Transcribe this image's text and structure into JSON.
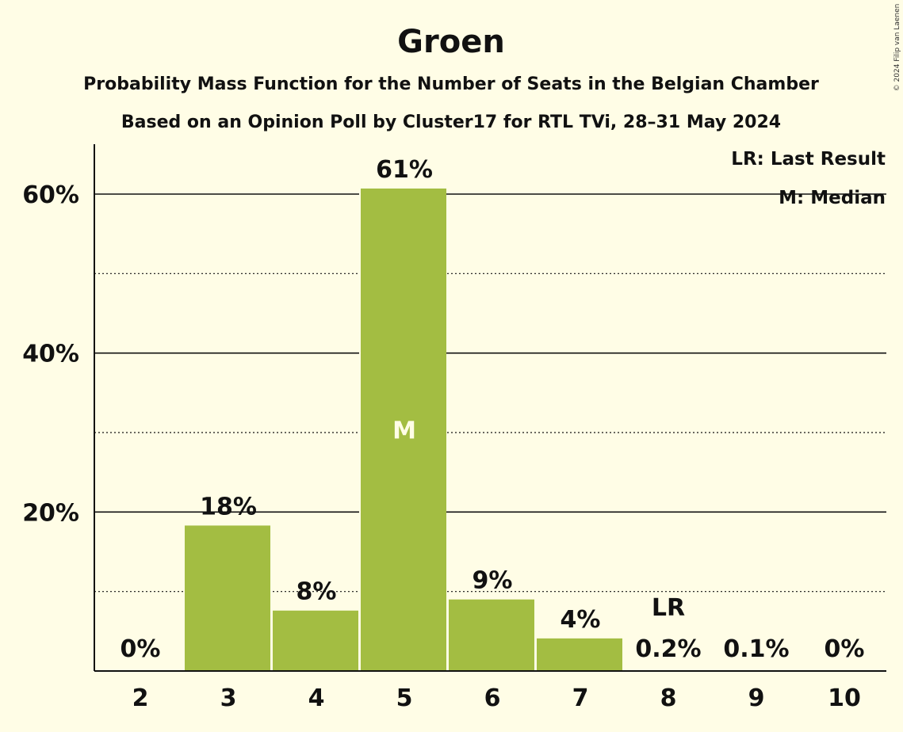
{
  "chart_data": {
    "type": "bar",
    "title": "Groen",
    "subtitle1": "Probability Mass Function for the Number of Seats in the Belgian Chamber",
    "subtitle2": "Based on an Opinion Poll by Cluster17 for RTL TVi, 28–31 May 2024",
    "categories": [
      "2",
      "3",
      "4",
      "5",
      "6",
      "7",
      "8",
      "9",
      "10"
    ],
    "values": [
      0,
      18.3,
      7.6,
      60.7,
      9.0,
      4.1,
      0.2,
      0.1,
      0
    ],
    "value_labels": [
      "0%",
      "18%",
      "8%",
      "61%",
      "9%",
      "4%",
      "0.2%",
      "0.1%",
      "0%"
    ],
    "median_category": "5",
    "median_marker": "M",
    "last_result_category": "8",
    "last_result_marker": "LR",
    "ylim": [
      0,
      66
    ],
    "yticks_major": [
      20,
      40,
      60
    ],
    "ytick_labels": [
      "20%",
      "40%",
      "60%"
    ],
    "yticks_minor": [
      10,
      30,
      50
    ],
    "xlabel": "",
    "ylabel": "",
    "bar_color": "#A3BD42",
    "legend": [
      "LR: Last Result",
      "M: Median"
    ],
    "legend_position": "top-right"
  },
  "copyright": "© 2024 Filip van Laenen"
}
